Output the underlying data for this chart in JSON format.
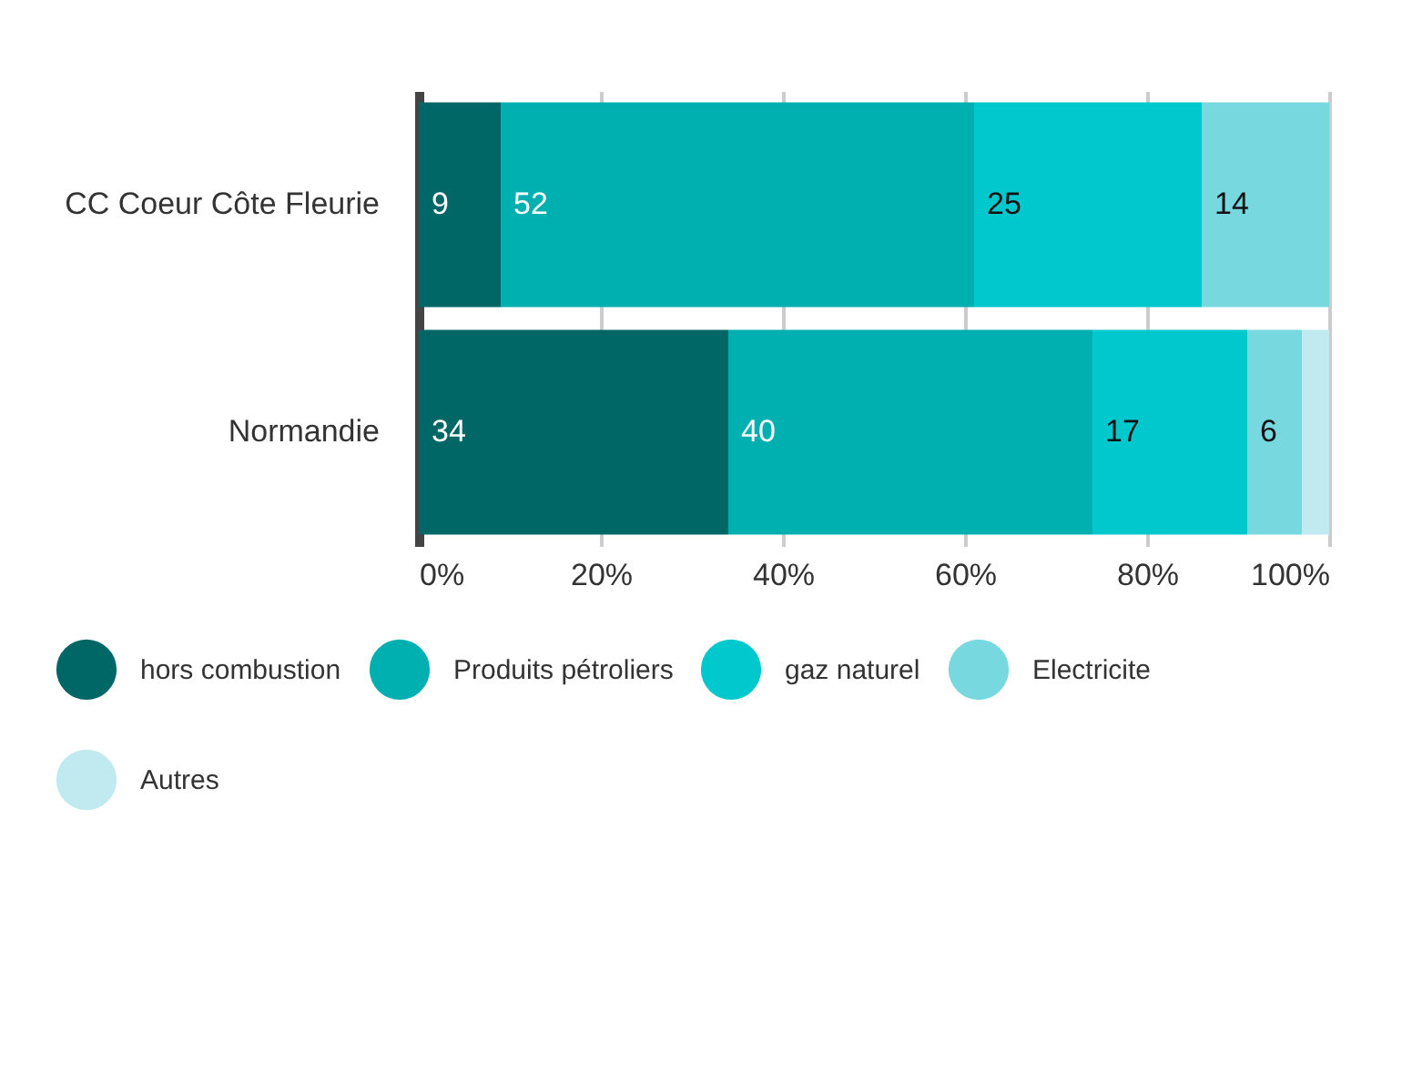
{
  "chart_data": {
    "type": "bar",
    "orientation": "horizontal",
    "stacked": true,
    "categories": [
      "CC Coeur Côte Fleurie",
      "Normandie"
    ],
    "series": [
      {
        "name": "hors combustion",
        "color": "#006666",
        "values": [
          9,
          34
        ],
        "value_labels": [
          "9",
          "34"
        ]
      },
      {
        "name": "Produits pétroliers",
        "color": "#00b0b0",
        "values": [
          52,
          40
        ],
        "value_labels": [
          "52",
          "40"
        ]
      },
      {
        "name": "gaz naturel",
        "color": "#00c8cc",
        "values": [
          25,
          17
        ],
        "value_labels": [
          "25",
          "17"
        ]
      },
      {
        "name": "Electricite",
        "color": "#77d8e0",
        "values": [
          14,
          6
        ],
        "value_labels": [
          "14",
          "6"
        ]
      },
      {
        "name": "Autres",
        "color": "#c0eaf0",
        "values": [
          0,
          3
        ],
        "value_labels": [
          null,
          null
        ]
      }
    ],
    "xlim": [
      0,
      100
    ],
    "xticks": [
      {
        "value": 0,
        "label": "0%"
      },
      {
        "value": 20,
        "label": "20%"
      },
      {
        "value": 40,
        "label": "40%"
      },
      {
        "value": 60,
        "label": "60%"
      },
      {
        "value": 80,
        "label": "80%"
      },
      {
        "value": 100,
        "label": "100%"
      }
    ],
    "grid": "x",
    "legend": "bottom"
  }
}
